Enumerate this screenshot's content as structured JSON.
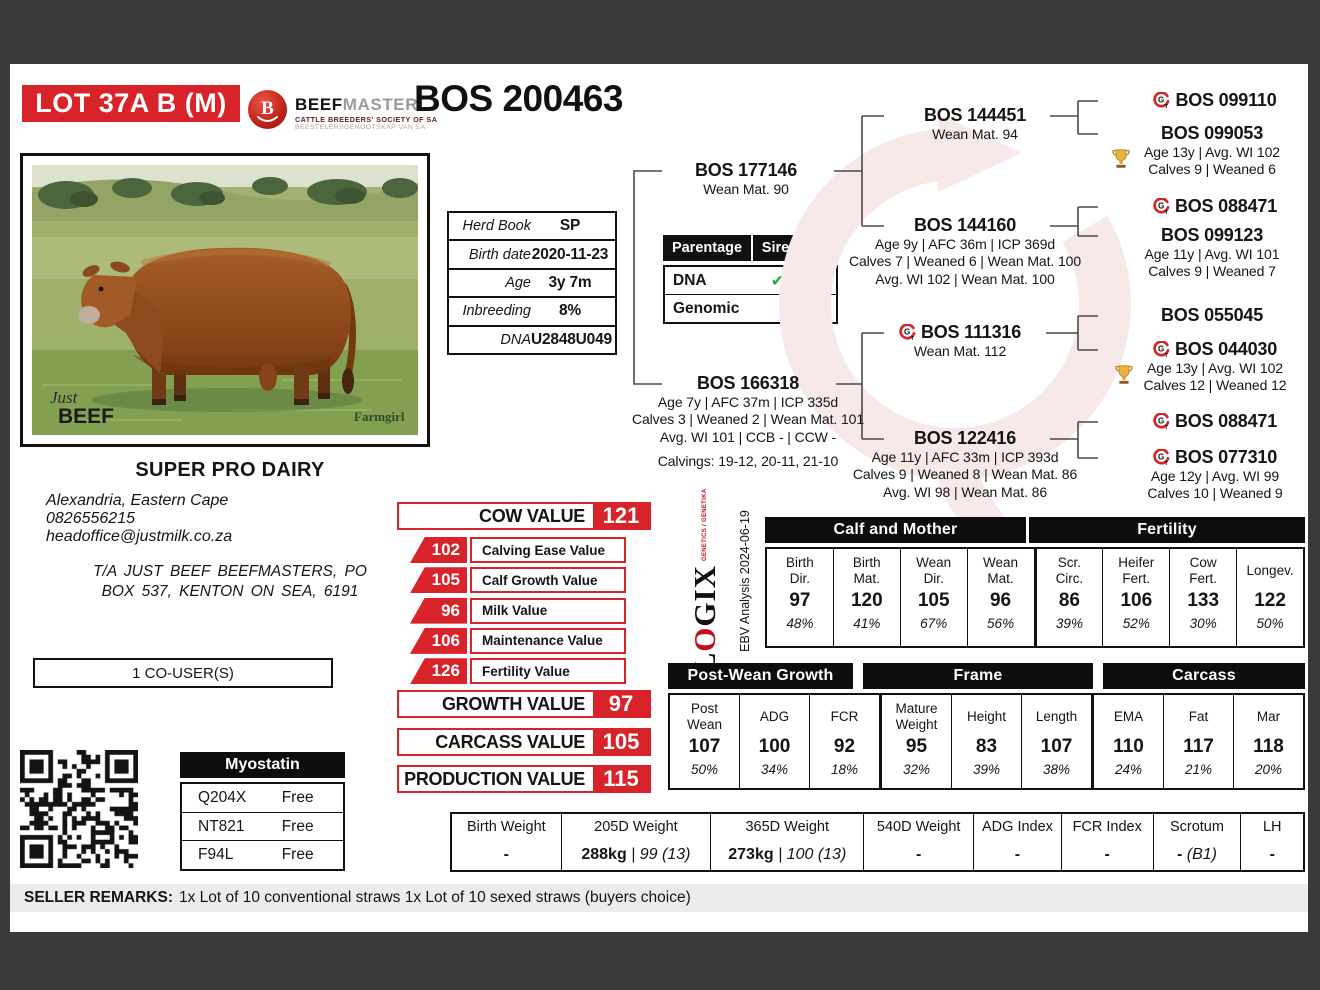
{
  "colors": {
    "accent": "#d8232a",
    "dark_bg": "#3a3a3a",
    "watermark_pink": "#f7e9e8",
    "check_green": "#2fa832"
  },
  "header": {
    "lot": "LOT 37A B (M)",
    "brand_top1": "BEEF",
    "brand_top2": "MASTER",
    "brand_sub1": "CATTLE BREEDERS' SOCIETY OF SA",
    "brand_sub2": "BEESTELERSGENOOTSKAP VAN SA",
    "animal_id": "BOS 200463"
  },
  "photo": {
    "wm_script": "Just",
    "wm_bold": "BEEF",
    "wm_right": "Farmgirl"
  },
  "herd_table": [
    {
      "label": "Herd Book",
      "value": "SP"
    },
    {
      "label": "Birth date",
      "value": "2020-11-23"
    },
    {
      "label": "Age",
      "value": "3y 7m"
    },
    {
      "label": "Inbreeding",
      "value": "8%"
    },
    {
      "label": "DNA",
      "value": "U2848U049"
    }
  ],
  "parentage": {
    "headers": [
      "Parentage",
      "Sire",
      "Dam"
    ],
    "rows": [
      {
        "label": "DNA",
        "sire": "✔",
        "dam": ""
      },
      {
        "label": "Genomic",
        "sire": "",
        "dam": ""
      }
    ]
  },
  "pedigree": {
    "nodes": [
      {
        "key": "sire",
        "id": "BOS 177146",
        "lines": [
          "Wean Mat. 90"
        ],
        "genomic": false,
        "trophy": false
      },
      {
        "key": "dam",
        "id": "BOS 166318",
        "lines": [
          "Age 7y | AFC 37m | ICP 335d",
          "Calves 3 | Weaned 2 | Wean Mat. 101",
          "Avg. WI 101 | CCB - | CCW -"
        ],
        "extra": "Calvings: 19-12, 20-11, 21-10",
        "genomic": false,
        "trophy": false
      },
      {
        "key": "ss",
        "id": "BOS 144451",
        "lines": [
          "Wean Mat. 94"
        ],
        "genomic": false,
        "trophy": false
      },
      {
        "key": "sd",
        "id": "BOS 144160",
        "lines": [
          "Age 9y | AFC 36m | ICP 369d",
          "Calves 7 | Weaned 6 | Wean Mat. 100",
          "Avg. WI 102 | Wean Mat. 100"
        ],
        "genomic": false,
        "trophy": false
      },
      {
        "key": "ds",
        "id": "BOS 111316",
        "lines": [
          "Wean Mat. 112"
        ],
        "genomic": true,
        "trophy": false
      },
      {
        "key": "dd",
        "id": "BOS 122416",
        "lines": [
          "Age 11y | AFC 33m | ICP 393d",
          "Calves 9 | Weaned 8 | Wean Mat. 86",
          "Avg. WI 98 | Wean Mat. 86"
        ],
        "genomic": false,
        "trophy": false
      },
      {
        "key": "sss",
        "id": "BOS 099110",
        "lines": [],
        "genomic": true,
        "trophy": false
      },
      {
        "key": "ssd",
        "id": "BOS 099053",
        "lines": [
          "Age 13y | Avg. WI 102",
          "Calves 9 | Weaned 6"
        ],
        "genomic": false,
        "trophy": true
      },
      {
        "key": "sds",
        "id": "BOS 088471",
        "lines": [],
        "genomic": true,
        "trophy": false
      },
      {
        "key": "sdd",
        "id": "BOS 099123",
        "lines": [
          "Age 11y | Avg. WI 101",
          "Calves 9 | Weaned 7"
        ],
        "genomic": false,
        "trophy": false
      },
      {
        "key": "dss",
        "id": "BOS 055045",
        "lines": [],
        "genomic": false,
        "trophy": false
      },
      {
        "key": "dsd",
        "id": "BOS 044030",
        "lines": [
          "Age 13y | Avg. WI 102",
          "Calves 12 | Weaned 12"
        ],
        "genomic": true,
        "trophy": true
      },
      {
        "key": "dds",
        "id": "BOS 088471",
        "lines": [],
        "genomic": true,
        "trophy": false
      },
      {
        "key": "ddd",
        "id": "BOS 077310",
        "lines": [
          "Age 12y | Avg. WI 99",
          "Calves 10 | Weaned 9"
        ],
        "genomic": true,
        "trophy": false
      }
    ]
  },
  "contact": {
    "farm": "SUPER PRO DAIRY",
    "lines": [
      "Alexandria, Eastern Cape",
      "0826556215",
      "headoffice@justmilk.co.za"
    ],
    "ta_lines": [
      "T/A JUST BEEF BEEFMASTERS, PO",
      "BOX 537, KENTON ON SEA, 6191"
    ],
    "co_users": "1 CO-USER(S)"
  },
  "values": {
    "cow": {
      "label": "COW VALUE",
      "value": "121"
    },
    "subs": [
      {
        "value": "102",
        "label": "Calving Ease Value"
      },
      {
        "value": "105",
        "label": "Calf Growth Value"
      },
      {
        "value": "96",
        "label": "Milk Value"
      },
      {
        "value": "106",
        "label": "Maintenance Value"
      },
      {
        "value": "126",
        "label": "Fertility Value"
      }
    ],
    "growth": {
      "label": "GROWTH VALUE",
      "value": "97"
    },
    "carcass": {
      "label": "CARCASS VALUE",
      "value": "105"
    },
    "production": {
      "label": "PRODUCTION VALUE",
      "value": "115"
    }
  },
  "logix": {
    "l": "L",
    "o": "O",
    "gix": "GIX",
    "sub": "GENETICS / GENETIKA",
    "analysis": "EBV Analysis 2024-06-19"
  },
  "ebv": {
    "row1": [
      {
        "title": "Calf and Mother",
        "cols": [
          {
            "h": "Birth\nDir.",
            "v": "97",
            "p": "48%"
          },
          {
            "h": "Birth\nMat.",
            "v": "120",
            "p": "41%"
          },
          {
            "h": "Wean\nDir.",
            "v": "105",
            "p": "67%"
          },
          {
            "h": "Wean\nMat.",
            "v": "96",
            "p": "56%"
          }
        ]
      },
      {
        "title": "Fertility",
        "cols": [
          {
            "h": "Scr.\nCirc.",
            "v": "86",
            "p": "39%"
          },
          {
            "h": "Heifer\nFert.",
            "v": "106",
            "p": "52%"
          },
          {
            "h": "Cow\nFert.",
            "v": "133",
            "p": "30%"
          },
          {
            "h": "Longev.",
            "v": "122",
            "p": "50%"
          }
        ]
      }
    ],
    "row2": [
      {
        "title": "Post-Wean Growth",
        "cols": [
          {
            "h": "Post\nWean",
            "v": "107",
            "p": "50%"
          },
          {
            "h": "ADG",
            "v": "100",
            "p": "34%"
          },
          {
            "h": "FCR",
            "v": "92",
            "p": "18%"
          }
        ]
      },
      {
        "title": "Frame",
        "cols": [
          {
            "h": "Mature\nWeight",
            "v": "95",
            "p": "32%"
          },
          {
            "h": "Height",
            "v": "83",
            "p": "39%"
          },
          {
            "h": "Length",
            "v": "107",
            "p": "38%"
          }
        ]
      },
      {
        "title": "Carcass",
        "cols": [
          {
            "h": "EMA",
            "v": "110",
            "p": "24%"
          },
          {
            "h": "Fat",
            "v": "117",
            "p": "21%"
          },
          {
            "h": "Mar",
            "v": "118",
            "p": "20%"
          }
        ]
      }
    ]
  },
  "weights": [
    {
      "h": "Birth Weight",
      "v": "-",
      "extra": ""
    },
    {
      "h": "205D Weight",
      "v": "288kg",
      "extra": " | 99 (13)"
    },
    {
      "h": "365D Weight",
      "v": "273kg",
      "extra": " | 100 (13)"
    },
    {
      "h": "540D Weight",
      "v": "-",
      "extra": ""
    },
    {
      "h": "ADG Index",
      "v": "-",
      "extra": ""
    },
    {
      "h": "FCR Index",
      "v": "-",
      "extra": ""
    },
    {
      "h": "Scrotum",
      "v": "-",
      "extra": " (B1)"
    },
    {
      "h": "LH",
      "v": "-",
      "extra": ""
    }
  ],
  "myostatin": {
    "title": "Myostatin",
    "rows": [
      {
        "gene": "Q204X",
        "status": "Free"
      },
      {
        "gene": "NT821",
        "status": "Free"
      },
      {
        "gene": "F94L",
        "status": "Free"
      }
    ]
  },
  "remarks": {
    "label": "SELLER REMARKS:",
    "text": "1x Lot of 10 conventional straws 1x Lot of 10 sexed straws (buyers choice)"
  }
}
